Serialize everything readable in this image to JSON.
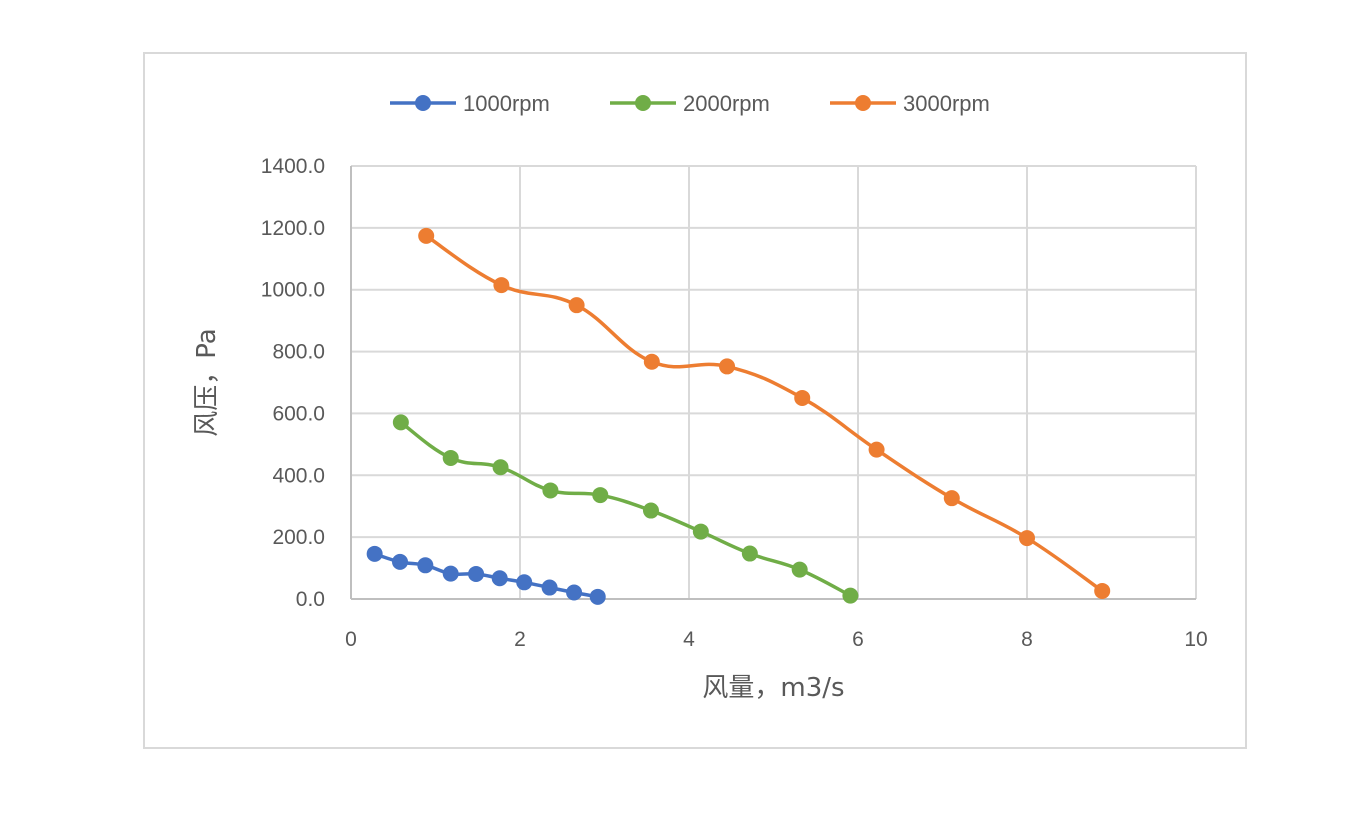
{
  "chart_data": {
    "type": "line",
    "title": "",
    "xlabel": "风量，m3/s",
    "ylabel": "风压，Pa",
    "xlim": [
      0,
      10
    ],
    "ylim": [
      0,
      1400
    ],
    "x_ticks": [
      0,
      2,
      4,
      6,
      8,
      10
    ],
    "x_tick_labels": [
      "0",
      "2",
      "4",
      "6",
      "8",
      "10"
    ],
    "y_ticks": [
      0,
      200,
      400,
      600,
      800,
      1000,
      1200,
      1400
    ],
    "y_tick_labels": [
      "0.0",
      "200.0",
      "400.0",
      "600.0",
      "800.0",
      "1000.0",
      "1200.0",
      "1400.0"
    ],
    "grid": true,
    "legend_position": "top",
    "smooth": true,
    "series": [
      {
        "name": "1000rpm",
        "color": "#4472c4",
        "points": [
          [
            0.28,
            146
          ],
          [
            0.58,
            120
          ],
          [
            0.88,
            109
          ],
          [
            1.18,
            82
          ],
          [
            1.48,
            81
          ],
          [
            1.76,
            67
          ],
          [
            2.05,
            54
          ],
          [
            2.35,
            37
          ],
          [
            2.64,
            21
          ],
          [
            2.92,
            7
          ]
        ]
      },
      {
        "name": "2000rpm",
        "color": "#70ad47",
        "points": [
          [
            0.59,
            571
          ],
          [
            1.18,
            456
          ],
          [
            1.77,
            426
          ],
          [
            2.36,
            351
          ],
          [
            2.95,
            336
          ],
          [
            3.55,
            286
          ],
          [
            4.14,
            218
          ],
          [
            4.72,
            147
          ],
          [
            5.31,
            95
          ],
          [
            5.91,
            11
          ]
        ]
      },
      {
        "name": "3000rpm",
        "color": "#ed7d31",
        "points": [
          [
            0.89,
            1174
          ],
          [
            1.78,
            1015
          ],
          [
            2.67,
            950
          ],
          [
            3.56,
            767
          ],
          [
            4.45,
            752
          ],
          [
            5.34,
            650
          ],
          [
            6.22,
            483
          ],
          [
            7.11,
            326
          ],
          [
            8.0,
            197
          ],
          [
            8.89,
            26
          ]
        ]
      }
    ]
  }
}
